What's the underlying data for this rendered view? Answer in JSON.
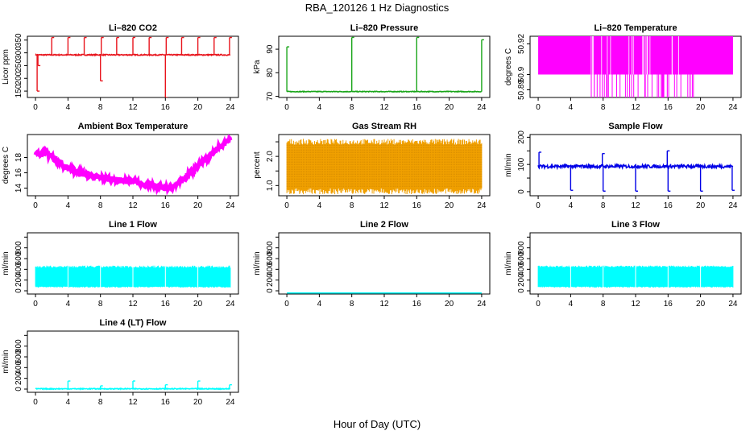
{
  "page_title": "RBA_120126  1 Hz Diagnostics",
  "x_axis_label": "Hour of Day (UTC)",
  "colors": {
    "red": "#e8141c",
    "green": "#1aa51a",
    "magenta": "#ff00ff",
    "orange": "#f0a000",
    "blue": "#0000e6",
    "cyan": "#00ffff"
  },
  "chart_data": [
    {
      "type": "line",
      "title": "Li–820 CO2",
      "ylabel": "Licor ppm",
      "color_key": "red",
      "baseline": 292,
      "noise": 2,
      "x": [
        0,
        24
      ],
      "xticks": [
        0,
        4,
        8,
        12,
        16,
        20,
        24
      ],
      "ylim": [
        125,
        365
      ],
      "yticks": [
        150,
        200,
        250,
        300,
        350
      ],
      "spikes": [
        [
          0.2,
          150
        ],
        [
          0.3,
          250
        ],
        [
          2.0,
          360
        ],
        [
          4.0,
          360
        ],
        [
          6.0,
          360
        ],
        [
          8.0,
          190
        ],
        [
          8.1,
          360
        ],
        [
          10.0,
          360
        ],
        [
          12.0,
          360
        ],
        [
          14.0,
          360
        ],
        [
          16.0,
          125
        ],
        [
          16.1,
          360
        ],
        [
          18.0,
          360
        ],
        [
          20.0,
          360
        ],
        [
          22.0,
          360
        ],
        [
          23.9,
          360
        ]
      ]
    },
    {
      "type": "line",
      "title": "Li–820 Pressure",
      "ylabel": "kPa",
      "color_key": "green",
      "baseline": 72,
      "noise": 0.15,
      "x": [
        0,
        24
      ],
      "xticks": [
        0,
        4,
        8,
        12,
        16,
        20,
        24
      ],
      "ylim": [
        69.5,
        95.5
      ],
      "yticks": [
        70,
        80,
        90
      ],
      "spikes": [
        [
          0.0,
          91
        ],
        [
          8.0,
          95
        ],
        [
          16.0,
          95
        ],
        [
          24.0,
          94
        ]
      ]
    },
    {
      "type": "step",
      "title": "Li–820 Temperature",
      "ylabel": "degrees C",
      "color_key": "magenta",
      "x": [
        0,
        24
      ],
      "xticks": [
        0,
        4,
        8,
        12,
        16,
        20,
        24
      ],
      "ylim": [
        50.885,
        50.925
      ],
      "yticks": [
        50.89,
        50.9,
        50.92
      ],
      "ytick_labels": [
        "50.89",
        "50.9",
        "50.92"
      ],
      "levels": [
        50.9,
        50.925
      ],
      "drop_level": 50.885,
      "drop_range": [
        6.5,
        19.5
      ]
    },
    {
      "type": "line",
      "title": "Ambient Box Temperature",
      "ylabel": "degrees C",
      "color_key": "magenta",
      "noise": 0.35,
      "x": [
        0,
        24
      ],
      "xticks": [
        0,
        4,
        8,
        12,
        16,
        20,
        24
      ],
      "ylim": [
        13,
        21
      ],
      "yticks": [
        14,
        16,
        18
      ],
      "curve": [
        [
          0,
          18.3
        ],
        [
          1,
          18.8
        ],
        [
          2,
          18.2
        ],
        [
          3,
          17.3
        ],
        [
          4,
          16.6
        ],
        [
          6,
          15.8
        ],
        [
          8,
          15.3
        ],
        [
          10,
          15.1
        ],
        [
          12,
          14.8
        ],
        [
          14,
          14.4
        ],
        [
          16,
          14.0
        ],
        [
          17,
          14.2
        ],
        [
          18,
          15.0
        ],
        [
          20,
          16.8
        ],
        [
          22,
          18.8
        ],
        [
          24,
          20.4
        ]
      ]
    },
    {
      "type": "band",
      "title": "Gas Stream RH",
      "ylabel": "percent",
      "color_key": "orange",
      "x": [
        0,
        24
      ],
      "xticks": [
        0,
        4,
        8,
        12,
        16,
        20,
        24
      ],
      "ylim": [
        0.65,
        2.75
      ],
      "yticks": [
        1.0,
        1.5,
        2.0,
        2.5
      ],
      "ytick_labels": [
        "1.0",
        "",
        "2.0",
        ""
      ],
      "band_low": 0.9,
      "band_high": 2.4,
      "band_max": 2.6,
      "band_min": 0.7
    },
    {
      "type": "line",
      "title": "Sample Flow",
      "ylabel": "ml/min",
      "color_key": "blue",
      "baseline": 93,
      "noise": 6,
      "x": [
        0,
        24
      ],
      "xticks": [
        0,
        4,
        8,
        12,
        16,
        20,
        24
      ],
      "ylim": [
        -15,
        210
      ],
      "yticks": [
        0,
        50,
        100,
        150,
        200
      ],
      "ytick_labels": [
        "0",
        "",
        "100",
        "",
        "200"
      ],
      "spikes": [
        [
          0.1,
          145
        ],
        [
          4.0,
          5
        ],
        [
          7.9,
          140
        ],
        [
          8.0,
          2
        ],
        [
          12.0,
          2
        ],
        [
          15.9,
          150
        ],
        [
          16.0,
          2
        ],
        [
          20.0,
          2
        ],
        [
          23.9,
          5
        ]
      ]
    },
    {
      "type": "band",
      "title": "Line 1 Flow",
      "ylabel": "ml/min",
      "color_key": "cyan",
      "x": [
        0,
        24
      ],
      "xticks": [
        0,
        4,
        8,
        12,
        16,
        20,
        24
      ],
      "ylim": [
        -60,
        1080
      ],
      "yticks": [
        0,
        200,
        400,
        600,
        800,
        1000
      ],
      "ytick_labels": [
        "0",
        "200",
        "400",
        "600",
        "800",
        ""
      ],
      "band_low": 80,
      "band_high": 430,
      "band_max": 470,
      "band_min": 60
    },
    {
      "type": "line",
      "title": "Line 2 Flow",
      "ylabel": "ml/min",
      "color_key": "cyan",
      "baseline": -40,
      "noise": 0,
      "x": [
        0,
        24
      ],
      "xticks": [
        0,
        4,
        8,
        12,
        16,
        20,
        24
      ],
      "ylim": [
        -60,
        1080
      ],
      "yticks": [
        0,
        200,
        400,
        600,
        800,
        1000
      ],
      "ytick_labels": [
        "0",
        "200",
        "400",
        "600",
        "800",
        ""
      ],
      "spikes": []
    },
    {
      "type": "band",
      "title": "Line 3 Flow",
      "ylabel": "ml/min",
      "color_key": "cyan",
      "x": [
        0,
        24
      ],
      "xticks": [
        0,
        4,
        8,
        12,
        16,
        20,
        24
      ],
      "ylim": [
        -60,
        1080
      ],
      "yticks": [
        0,
        200,
        400,
        600,
        800,
        1000
      ],
      "ytick_labels": [
        "0",
        "200",
        "400",
        "600",
        "800",
        ""
      ],
      "band_low": 80,
      "band_high": 440,
      "band_max": 470,
      "band_min": 60
    },
    {
      "type": "line",
      "title": "Line 4 (LT) Flow",
      "ylabel": "ml/min",
      "color_key": "cyan",
      "baseline": 5,
      "noise": 8,
      "x": [
        0,
        24
      ],
      "xticks": [
        0,
        4,
        8,
        12,
        16,
        20,
        24
      ],
      "ylim": [
        -60,
        1080
      ],
      "yticks": [
        0,
        200,
        400,
        600,
        800,
        1000
      ],
      "ytick_labels": [
        "0",
        "200",
        "400",
        "600",
        "800",
        ""
      ],
      "spikes": [
        [
          4.0,
          150
        ],
        [
          8.0,
          60
        ],
        [
          12.0,
          150
        ],
        [
          16.0,
          80
        ],
        [
          20.0,
          150
        ],
        [
          23.9,
          80
        ]
      ]
    }
  ]
}
